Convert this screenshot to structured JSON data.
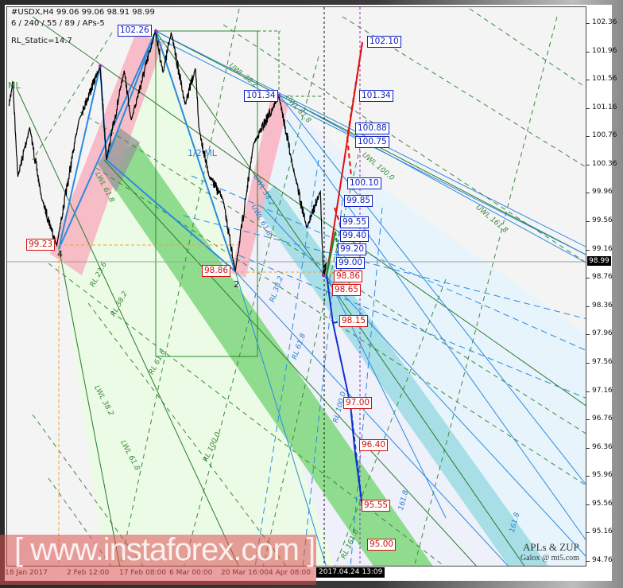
{
  "header": {
    "symbol_line": "#USDX,H4  99.06 99.06 98.91 98.99",
    "settings_line": "6 / 240 / 55 / 89 / APs-5",
    "rl_static": "RL_Static=14.7"
  },
  "colors": {
    "background": "#f4f4f4",
    "price_line": "#000000",
    "pitchfork_blue": "#2a8ae0",
    "projection_red": "#e01010",
    "projection_green": "#1a8a1a",
    "green_band": "#8fdc8f",
    "cyan_band": "#a8dfe6",
    "pink_band": "#f7b6c2",
    "label_blue": "#1020c0",
    "label_red": "#d01010"
  },
  "price_labels_blue": [
    {
      "text": "102.26",
      "price": 102.26
    },
    {
      "text": "101.34",
      "price": 101.34
    },
    {
      "text": "102.10",
      "price": 102.1
    },
    {
      "text": "101.34",
      "price": 101.34
    },
    {
      "text": "100.88",
      "price": 100.88
    },
    {
      "text": "100.75",
      "price": 100.75
    },
    {
      "text": "100.10",
      "price": 100.1
    },
    {
      "text": "99.85",
      "price": 99.85
    },
    {
      "text": "99.55",
      "price": 99.55
    },
    {
      "text": "99.40",
      "price": 99.4
    },
    {
      "text": "99.20",
      "price": 99.2
    },
    {
      "text": "99.00",
      "price": 99.0
    }
  ],
  "price_labels_red": [
    {
      "text": "99.23",
      "price": 99.23
    },
    {
      "text": "98.86",
      "price": 98.86
    },
    {
      "text": "98.86",
      "price": 98.86
    },
    {
      "text": "98.65",
      "price": 98.65
    },
    {
      "text": "98.15",
      "price": 98.15
    },
    {
      "text": "97.00",
      "price": 97.0
    },
    {
      "text": "96.40",
      "price": 96.4
    },
    {
      "text": "95.55",
      "price": 95.55
    },
    {
      "text": "95.00",
      "price": 95.0
    }
  ],
  "fib_labels": [
    "ML",
    "1/2 ML",
    "UWL 38.2",
    "UWL 61.8",
    "UWL 100.0",
    "UWL 161.8",
    "RL 23.6",
    "RL 38.2",
    "RL 61.8",
    "RL 100.0",
    "RL 161.8",
    "LWL 38.2",
    "LWL 61.8",
    "RL 38.2",
    "RL 61.8",
    "RL 100.0",
    "161.8",
    "161.8",
    "LWL 61.8",
    "UWL 38.2",
    "UWL 61.8"
  ],
  "pivot_numbers": [
    "4",
    "2"
  ],
  "current_price": "98.99",
  "crosshair_time": "2017.04.24 13:09",
  "watermark": "[  www.instaforex.com  ]",
  "signature": {
    "title": "APLs & ZUP",
    "credit": "Galox @ mt5.com"
  },
  "chart_data": {
    "type": "line",
    "title": "#USDX,H4",
    "ylim": [
      94.76,
      102.36
    ],
    "y_ticks": [
      "102.36",
      "101.96",
      "101.56",
      "101.16",
      "100.76",
      "100.36",
      "99.96",
      "99.56",
      "99.16",
      "98.76",
      "98.36",
      "97.96",
      "97.56",
      "97.16",
      "96.76",
      "96.36",
      "95.96",
      "95.56",
      "95.16",
      "94.76"
    ],
    "x_ticks": [
      "18 Jan 2017",
      "2 Feb 12:00",
      "17 Feb 08:00",
      "6 Mar 00:00",
      "20 Mar 16:00",
      "4 Apr 08:00"
    ],
    "x_tick_dates": [
      "2017-01-18T00:00",
      "2017-02-02T12:00",
      "2017-02-17T08:00",
      "2017-03-06T00:00",
      "2017-03-20T16:00",
      "2017-04-04T08:00"
    ],
    "grid": false,
    "series": [
      {
        "points": [
          [
            "2017-01-13T08:00",
            101.2
          ],
          [
            "2017-01-14T12:00",
            101.55
          ],
          [
            "2017-01-16T00:00",
            100.2
          ],
          [
            "2017-01-19T12:00",
            100.9
          ],
          [
            "2017-01-23T00:00",
            99.9
          ],
          [
            "2017-01-27T12:00",
            99.23
          ],
          [
            "2017-02-03T00:00",
            101.0
          ],
          [
            "2017-02-09T00:00",
            101.76
          ],
          [
            "2017-02-10T20:00",
            100.44
          ],
          [
            "2017-02-15T20:00",
            101.7
          ],
          [
            "2017-02-17T22:00",
            101.0
          ],
          [
            "2017-02-25T22:00",
            102.26
          ],
          [
            "2017-02-28T12:00",
            101.67
          ],
          [
            "2017-03-03T05:00",
            102.24
          ],
          [
            "2017-03-07T14:00",
            101.22
          ],
          [
            "2017-03-10T12:00",
            101.73
          ],
          [
            "2017-03-11T12:00",
            100.89
          ],
          [
            "2017-03-14T08:00",
            100.21
          ],
          [
            "2017-03-18T08:00",
            99.88
          ],
          [
            "2017-03-21T22:00",
            98.86
          ],
          [
            "2017-03-27T12:00",
            100.66
          ],
          [
            "2017-04-04T08:00",
            101.34
          ],
          [
            "2017-04-09T06:00",
            100.21
          ],
          [
            "2017-04-12T22:00",
            99.48
          ],
          [
            "2017-04-17T02:00",
            99.99
          ],
          [
            "2017-04-18T01:00",
            98.81
          ],
          [
            "2017-04-19T00:00",
            98.99
          ]
        ]
      }
    ]
  }
}
